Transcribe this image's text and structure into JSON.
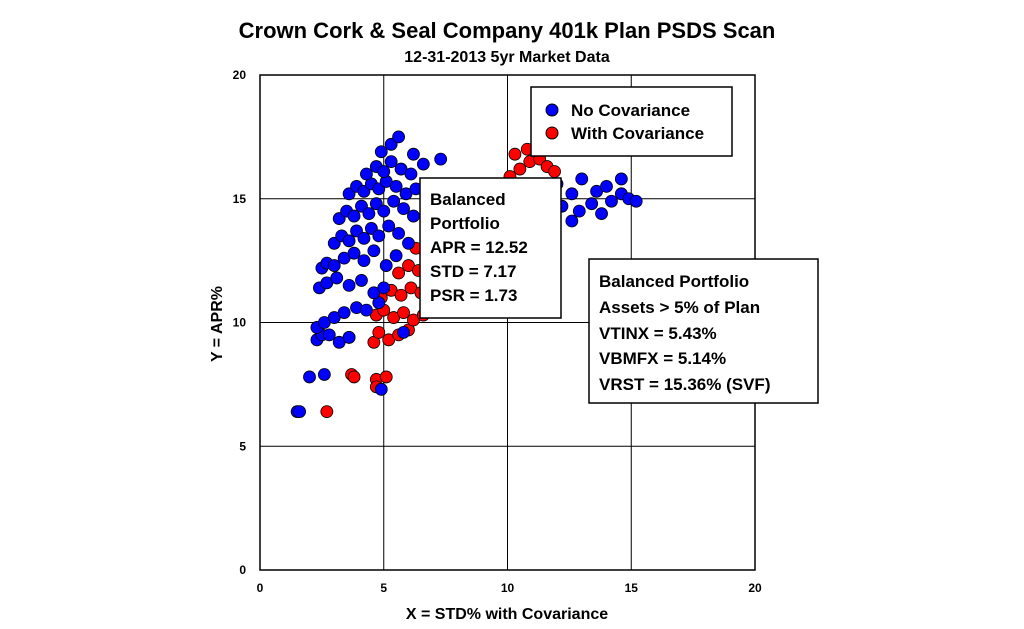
{
  "chart_data": {
    "type": "scatter",
    "title": "Crown Cork & Seal Company 401k Plan PSDS Scan",
    "subtitle": "12-31-2013 5yr Market Data",
    "xlabel": "X = STD% with Covariance",
    "ylabel": "Y = APR%",
    "xlim": [
      0,
      20
    ],
    "ylim": [
      0,
      20
    ],
    "xticks": [
      "0",
      "5",
      "10",
      "15",
      "20"
    ],
    "yticks": [
      "0",
      "5",
      "10",
      "15",
      "20"
    ],
    "grid": true,
    "legend_position": "top-right",
    "series": [
      {
        "name": "No Covariance",
        "color": "#0000ff",
        "points": [
          [
            1.5,
            6.4
          ],
          [
            1.6,
            6.4
          ],
          [
            2.0,
            7.8
          ],
          [
            2.6,
            7.9
          ],
          [
            4.9,
            7.3
          ],
          [
            2.3,
            9.3
          ],
          [
            2.5,
            9.5
          ],
          [
            2.8,
            9.5
          ],
          [
            3.2,
            9.2
          ],
          [
            3.6,
            9.4
          ],
          [
            5.8,
            9.6
          ],
          [
            2.3,
            9.8
          ],
          [
            2.6,
            10.0
          ],
          [
            3.0,
            10.2
          ],
          [
            3.4,
            10.4
          ],
          [
            3.9,
            10.6
          ],
          [
            4.3,
            10.5
          ],
          [
            4.8,
            10.8
          ],
          [
            2.4,
            11.4
          ],
          [
            2.7,
            11.6
          ],
          [
            3.1,
            11.8
          ],
          [
            3.6,
            11.5
          ],
          [
            4.1,
            11.7
          ],
          [
            4.6,
            11.2
          ],
          [
            5.0,
            11.4
          ],
          [
            2.5,
            12.2
          ],
          [
            2.7,
            12.4
          ],
          [
            3.0,
            12.3
          ],
          [
            3.4,
            12.6
          ],
          [
            3.8,
            12.8
          ],
          [
            4.2,
            12.5
          ],
          [
            4.6,
            12.9
          ],
          [
            5.1,
            12.3
          ],
          [
            5.5,
            12.7
          ],
          [
            3.0,
            13.2
          ],
          [
            3.3,
            13.5
          ],
          [
            3.6,
            13.3
          ],
          [
            3.9,
            13.7
          ],
          [
            4.2,
            13.4
          ],
          [
            4.5,
            13.8
          ],
          [
            4.8,
            13.5
          ],
          [
            5.2,
            13.9
          ],
          [
            5.6,
            13.6
          ],
          [
            6.0,
            13.2
          ],
          [
            3.2,
            14.2
          ],
          [
            3.5,
            14.5
          ],
          [
            3.8,
            14.3
          ],
          [
            4.1,
            14.7
          ],
          [
            4.4,
            14.4
          ],
          [
            4.7,
            14.8
          ],
          [
            5.0,
            14.5
          ],
          [
            5.4,
            14.9
          ],
          [
            5.8,
            14.6
          ],
          [
            6.2,
            14.3
          ],
          [
            3.6,
            15.2
          ],
          [
            3.9,
            15.5
          ],
          [
            4.2,
            15.3
          ],
          [
            4.5,
            15.6
          ],
          [
            4.8,
            15.4
          ],
          [
            5.1,
            15.7
          ],
          [
            5.5,
            15.5
          ],
          [
            5.9,
            15.2
          ],
          [
            6.3,
            15.4
          ],
          [
            4.3,
            16.0
          ],
          [
            4.7,
            16.3
          ],
          [
            5.0,
            16.1
          ],
          [
            5.3,
            16.5
          ],
          [
            5.7,
            16.2
          ],
          [
            6.1,
            16.0
          ],
          [
            6.6,
            16.4
          ],
          [
            7.3,
            16.6
          ],
          [
            4.9,
            16.9
          ],
          [
            5.3,
            17.2
          ],
          [
            5.6,
            17.5
          ],
          [
            6.2,
            16.8
          ],
          [
            11.5,
            15.4
          ],
          [
            12.0,
            15.6
          ],
          [
            12.6,
            15.2
          ],
          [
            13.0,
            15.8
          ],
          [
            13.6,
            15.3
          ],
          [
            14.0,
            15.5
          ],
          [
            14.6,
            15.2
          ],
          [
            12.2,
            14.7
          ],
          [
            12.9,
            14.5
          ],
          [
            13.4,
            14.8
          ],
          [
            14.2,
            14.9
          ],
          [
            14.9,
            15.0
          ],
          [
            15.2,
            14.9
          ],
          [
            13.8,
            14.4
          ],
          [
            12.6,
            14.1
          ],
          [
            14.6,
            15.8
          ]
        ]
      },
      {
        "name": "With Covariance",
        "color": "#ff0000",
        "points": [
          [
            2.7,
            6.4
          ],
          [
            3.7,
            7.9
          ],
          [
            3.8,
            7.8
          ],
          [
            4.7,
            7.7
          ],
          [
            5.1,
            7.8
          ],
          [
            4.7,
            7.4
          ],
          [
            3.6,
            9.4
          ],
          [
            4.6,
            9.2
          ],
          [
            4.8,
            9.6
          ],
          [
            5.2,
            9.3
          ],
          [
            5.6,
            9.5
          ],
          [
            6.0,
            9.7
          ],
          [
            4.7,
            10.3
          ],
          [
            5.0,
            10.5
          ],
          [
            5.4,
            10.2
          ],
          [
            5.8,
            10.4
          ],
          [
            6.2,
            10.1
          ],
          [
            6.6,
            10.3
          ],
          [
            4.9,
            11.0
          ],
          [
            5.3,
            11.3
          ],
          [
            5.7,
            11.1
          ],
          [
            6.1,
            11.4
          ],
          [
            6.5,
            11.2
          ],
          [
            6.9,
            11.5
          ],
          [
            5.6,
            12.0
          ],
          [
            6.0,
            12.3
          ],
          [
            6.4,
            12.1
          ],
          [
            6.8,
            12.4
          ],
          [
            7.2,
            12.2
          ],
          [
            7.5,
            12.5
          ],
          [
            6.3,
            13.0
          ],
          [
            6.7,
            13.3
          ],
          [
            7.1,
            13.1
          ],
          [
            7.5,
            13.4
          ],
          [
            7.9,
            13.2
          ],
          [
            9.7,
            15.6
          ],
          [
            10.1,
            15.9
          ],
          [
            10.5,
            16.2
          ],
          [
            10.9,
            16.5
          ],
          [
            11.3,
            16.6
          ],
          [
            11.6,
            16.3
          ],
          [
            11.9,
            16.1
          ],
          [
            10.3,
            16.8
          ],
          [
            10.8,
            17.0
          ],
          [
            9.3,
            15.4
          ],
          [
            8.7,
            15.0
          ]
        ]
      }
    ],
    "annotations": [
      {
        "lines": [
          "Balanced",
          "Portfolio",
          "APR = 12.52",
          "STD = 7.17",
          "PSR = 1.73"
        ]
      },
      {
        "lines": [
          "Balanced Portfolio",
          "Assets > 5% of Plan",
          "VTINX = 5.43%",
          "VBMFX = 5.14%",
          "VRST = 15.36% (SVF)"
        ]
      }
    ]
  }
}
